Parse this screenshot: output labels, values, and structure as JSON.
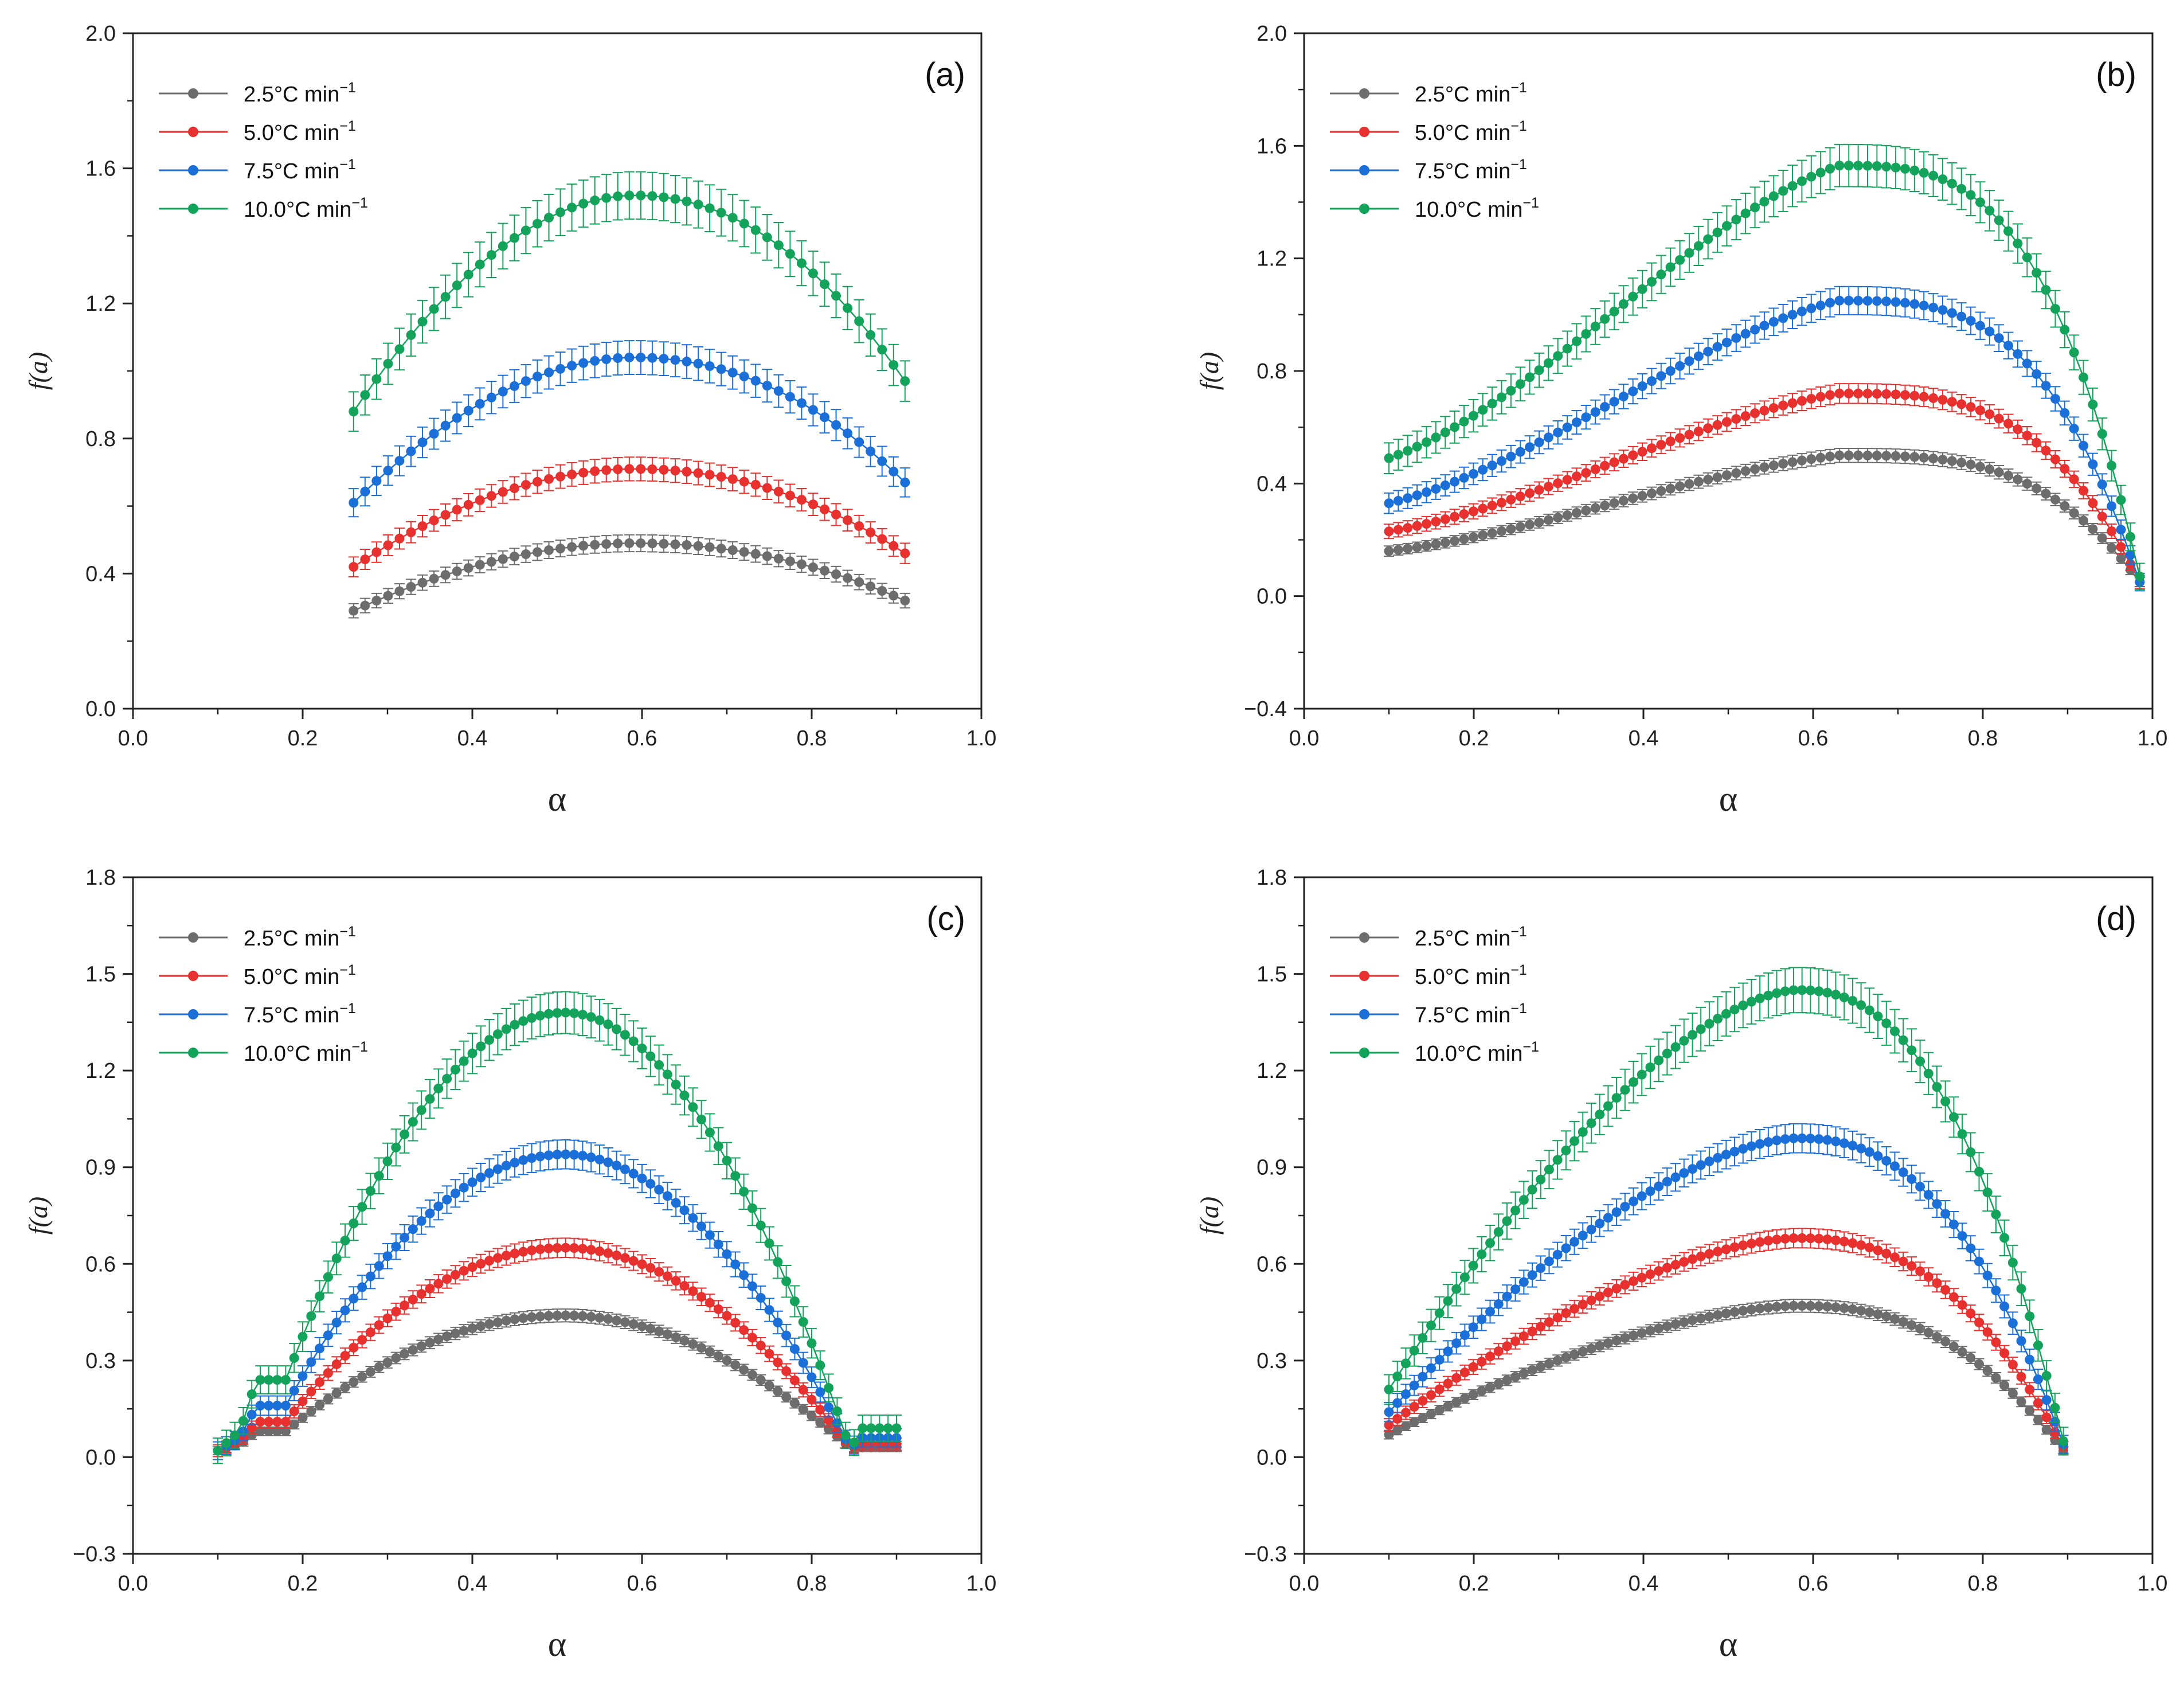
{
  "figure": {
    "legend_entries": [
      {
        "label": "2.5°C min",
        "sup": "−1",
        "color": "#6d6d6d"
      },
      {
        "label": "5.0°C min",
        "sup": "−1",
        "color": "#e8302f"
      },
      {
        "label": "7.5°C min",
        "sup": "−1",
        "color": "#1a6fd8"
      },
      {
        "label": "10.0°C min",
        "sup": "−1",
        "color": "#13a35a"
      }
    ]
  },
  "chart_data": [
    {
      "type": "scatter",
      "panel": "(a)",
      "xlabel": "α",
      "ylabel": "f(a)",
      "xlim": [
        0.0,
        1.0
      ],
      "ylim": [
        0.0,
        2.0
      ],
      "xticks": [
        "0.0",
        "0.2",
        "0.4",
        "0.6",
        "0.8",
        "1.0"
      ],
      "yticks": [
        "0.0",
        "0.4",
        "0.8",
        "1.2",
        "1.6",
        "2.0"
      ],
      "legend_position": "top-left",
      "x_range": [
        0.26,
        0.91
      ],
      "series": [
        {
          "name": "2.5°C min⁻¹",
          "shape": "a",
          "start": 0.29,
          "peak": 0.49,
          "peak_x": 0.59,
          "end": 0.32,
          "err": 0.025
        },
        {
          "name": "5.0°C min⁻¹",
          "shape": "a",
          "start": 0.42,
          "peak": 0.71,
          "peak_x": 0.59,
          "end": 0.46,
          "err": 0.035
        },
        {
          "name": "7.5°C min⁻¹",
          "shape": "a",
          "start": 0.61,
          "peak": 1.04,
          "peak_x": 0.59,
          "end": 0.67,
          "err": 0.05
        },
        {
          "name": "10.0°C min⁻¹",
          "shape": "a",
          "start": 0.88,
          "peak": 1.52,
          "peak_x": 0.59,
          "end": 0.97,
          "err": 0.07
        }
      ]
    },
    {
      "type": "scatter",
      "panel": "(b)",
      "xlabel": "α",
      "ylabel": "f(a)",
      "xlim": [
        0.0,
        1.0
      ],
      "ylim": [
        -0.4,
        2.0
      ],
      "xticks": [
        "0.0",
        "0.2",
        "0.4",
        "0.6",
        "0.8",
        "1.0"
      ],
      "yticks": [
        "−0.4",
        "0.0",
        "0.4",
        "0.8",
        "1.2",
        "1.6",
        "2.0"
      ],
      "legend_position": "top-left",
      "x_range": [
        0.1,
        0.985
      ],
      "series": [
        {
          "name": "2.5°C min⁻¹",
          "shape": "b",
          "start": 0.16,
          "peak": 0.5,
          "peak_x": 0.63,
          "end": 0.05,
          "err": 0.025
        },
        {
          "name": "5.0°C min⁻¹",
          "shape": "b",
          "start": 0.23,
          "peak": 0.72,
          "peak_x": 0.63,
          "end": 0.05,
          "err": 0.035
        },
        {
          "name": "7.5°C min⁻¹",
          "shape": "b",
          "start": 0.33,
          "peak": 1.05,
          "peak_x": 0.63,
          "end": 0.05,
          "err": 0.05
        },
        {
          "name": "10.0°C min⁻¹",
          "shape": "b",
          "start": 0.49,
          "peak": 1.53,
          "peak_x": 0.63,
          "end": 0.07,
          "err": 0.075
        }
      ]
    },
    {
      "type": "scatter",
      "panel": "(c)",
      "xlabel": "α",
      "ylabel": "f(a)",
      "xlim": [
        0.0,
        1.0
      ],
      "ylim": [
        -0.3,
        1.8
      ],
      "xticks": [
        "0.0",
        "0.2",
        "0.4",
        "0.6",
        "0.8",
        "1.0"
      ],
      "yticks": [
        "−0.3",
        "0.0",
        "0.3",
        "0.6",
        "0.9",
        "1.2",
        "1.5",
        "1.8"
      ],
      "legend_position": "top-left",
      "x_range": [
        0.1,
        0.9
      ],
      "series": [
        {
          "name": "2.5°C min⁻¹",
          "shape": "c",
          "shoulder": 0.08,
          "peak": 0.44,
          "peak_x": 0.51,
          "tail": 0.03,
          "err": 0.02
        },
        {
          "name": "5.0°C min⁻¹",
          "shape": "c",
          "shoulder": 0.11,
          "peak": 0.65,
          "peak_x": 0.51,
          "tail": 0.04,
          "err": 0.03
        },
        {
          "name": "7.5°C min⁻¹",
          "shape": "c",
          "shoulder": 0.16,
          "peak": 0.94,
          "peak_x": 0.51,
          "tail": 0.06,
          "err": 0.045
        },
        {
          "name": "10.0°C min⁻¹",
          "shape": "c",
          "shoulder": 0.24,
          "peak": 1.38,
          "peak_x": 0.51,
          "tail": 0.09,
          "err": 0.065
        }
      ]
    },
    {
      "type": "scatter",
      "panel": "(d)",
      "xlabel": "α",
      "ylabel": "f(a)",
      "xlim": [
        0.0,
        1.0
      ],
      "ylim": [
        -0.3,
        1.8
      ],
      "xticks": [
        "0.0",
        "0.2",
        "0.4",
        "0.6",
        "0.8",
        "1.0"
      ],
      "yticks": [
        "−0.3",
        "0.0",
        "0.3",
        "0.6",
        "0.9",
        "1.2",
        "1.5",
        "1.8"
      ],
      "legend_position": "top-left",
      "x_range": [
        0.1,
        0.895
      ],
      "series": [
        {
          "name": "2.5°C min⁻¹",
          "shape": "d",
          "start": 0.07,
          "peak": 0.47,
          "peak_x": 0.58,
          "end": 0.02,
          "err": 0.02
        },
        {
          "name": "5.0°C min⁻¹",
          "shape": "d",
          "start": 0.1,
          "peak": 0.68,
          "peak_x": 0.58,
          "end": 0.03,
          "err": 0.03
        },
        {
          "name": "7.5°C min⁻¹",
          "shape": "d",
          "start": 0.14,
          "peak": 0.99,
          "peak_x": 0.58,
          "end": 0.04,
          "err": 0.045
        },
        {
          "name": "10.0°C min⁻¹",
          "shape": "d",
          "start": 0.21,
          "peak": 1.45,
          "peak_x": 0.58,
          "end": 0.05,
          "err": 0.07
        }
      ]
    }
  ]
}
